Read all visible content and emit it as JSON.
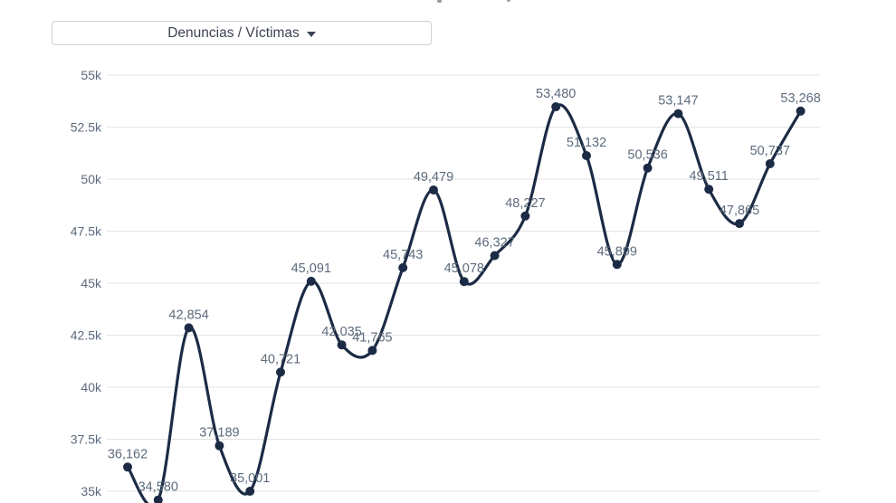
{
  "dropdown": {
    "label": "Denuncias / Víctimas",
    "icon": "chevron-down-icon"
  },
  "chart_data": {
    "type": "line",
    "curve": "spline",
    "title": "",
    "legend": "none",
    "grid": true,
    "ylim": [
      34000,
      55000
    ],
    "ylabel": "",
    "xlabel": "",
    "series": [
      {
        "name": "Denuncias / Víctimas",
        "values": [
          36162,
          34580,
          42854,
          37189,
          35001,
          40721,
          45091,
          42035,
          41765,
          45743,
          49479,
          45078,
          46327,
          48227,
          53480,
          51132,
          45899,
          50536,
          53147,
          49511,
          47865,
          50737,
          53268
        ]
      }
    ],
    "point_labels": [
      "36,162",
      "34,580",
      "42,854",
      "37,189",
      "35,001",
      "40,721",
      "45,091",
      "42,035",
      "41,765",
      "45,743",
      "49,479",
      "45,078",
      "46,327",
      "48,227",
      "53,480",
      "51,132",
      "45,899",
      "50,536",
      "53,147",
      "49,511",
      "47,865",
      "50,737",
      "53,268"
    ],
    "yticks": [
      {
        "value": 55000,
        "label": "55k"
      },
      {
        "value": 52500,
        "label": "52.5k"
      },
      {
        "value": 50000,
        "label": "50k"
      },
      {
        "value": 47500,
        "label": "47.5k"
      },
      {
        "value": 45000,
        "label": "45k"
      },
      {
        "value": 42500,
        "label": "42.5k"
      },
      {
        "value": 40000,
        "label": "40k"
      },
      {
        "value": 37500,
        "label": "37.5k"
      },
      {
        "value": 35000,
        "label": "35k"
      }
    ],
    "colors": {
      "line": "#1c2b45",
      "marker": "#1c2b45",
      "data_label": "#5d6b7c",
      "axis_label": "#5d6b7c",
      "gridline": "#e3e3e3"
    }
  }
}
